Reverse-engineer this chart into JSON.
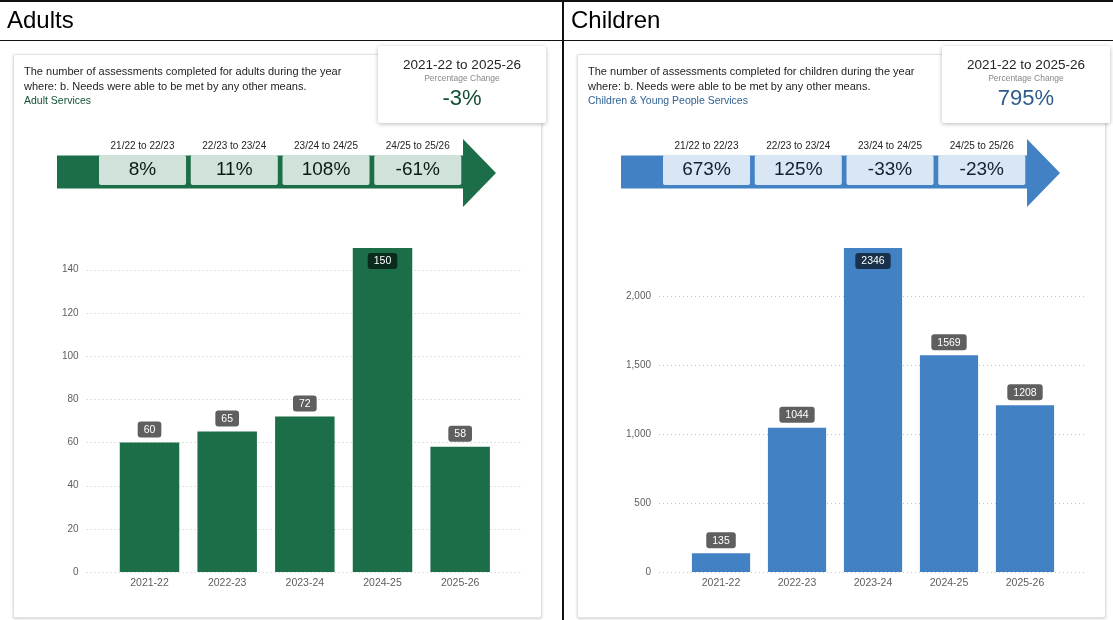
{
  "chart_data": [
    {
      "type": "bar",
      "title": "Adults",
      "subtitle": "The number of assessments completed for adults during the year where: b. Needs were able to be met by any other means.",
      "annotations": [
        "Adult Services",
        "2021-22 to 2025-26",
        "Percentage Change",
        "-3%",
        "21/22 to 22/23",
        "8%",
        "22/23 to 23/24",
        "11%",
        "23/24 to 24/25",
        "108%",
        "24/25 to 25/26",
        "-61%"
      ],
      "categories": [
        "2021-22",
        "2022-23",
        "2023-24",
        "2024-25",
        "2025-26"
      ],
      "values": [
        60,
        65,
        72,
        150,
        58
      ],
      "color": "#1b6e47",
      "ylim": [
        0,
        150
      ],
      "yticks": [
        0,
        20,
        40,
        60,
        80,
        100,
        120,
        140
      ],
      "grid": "y",
      "data_labels": true
    },
    {
      "type": "bar",
      "title": "Children",
      "subtitle": "The number of assessments completed for children during the year where: b. Needs were able to be met by any other means.",
      "annotations": [
        "Children & Young People Services",
        "2021-22 to 2025-26",
        "Percentage Change",
        "795%",
        "21/22 to 22/23",
        "673%",
        "22/23 to 23/24",
        "125%",
        "23/24 to 24/25",
        "-33%",
        "24/25 to 25/26",
        "-23%"
      ],
      "categories": [
        "2021-22",
        "2022-23",
        "2023-24",
        "2024-25",
        "2025-26"
      ],
      "values": [
        135,
        1044,
        2346,
        1569,
        1208
      ],
      "color": "#4282c4",
      "ylim": [
        0,
        2346
      ],
      "yticks": [
        0,
        500,
        {
          "value": 1000,
          "label": "1,000"
        },
        {
          "value": 1500,
          "label": "1,500"
        },
        {
          "value": 2000,
          "label": "2,000"
        }
      ],
      "grid": "y",
      "data_labels": true
    }
  ]
}
